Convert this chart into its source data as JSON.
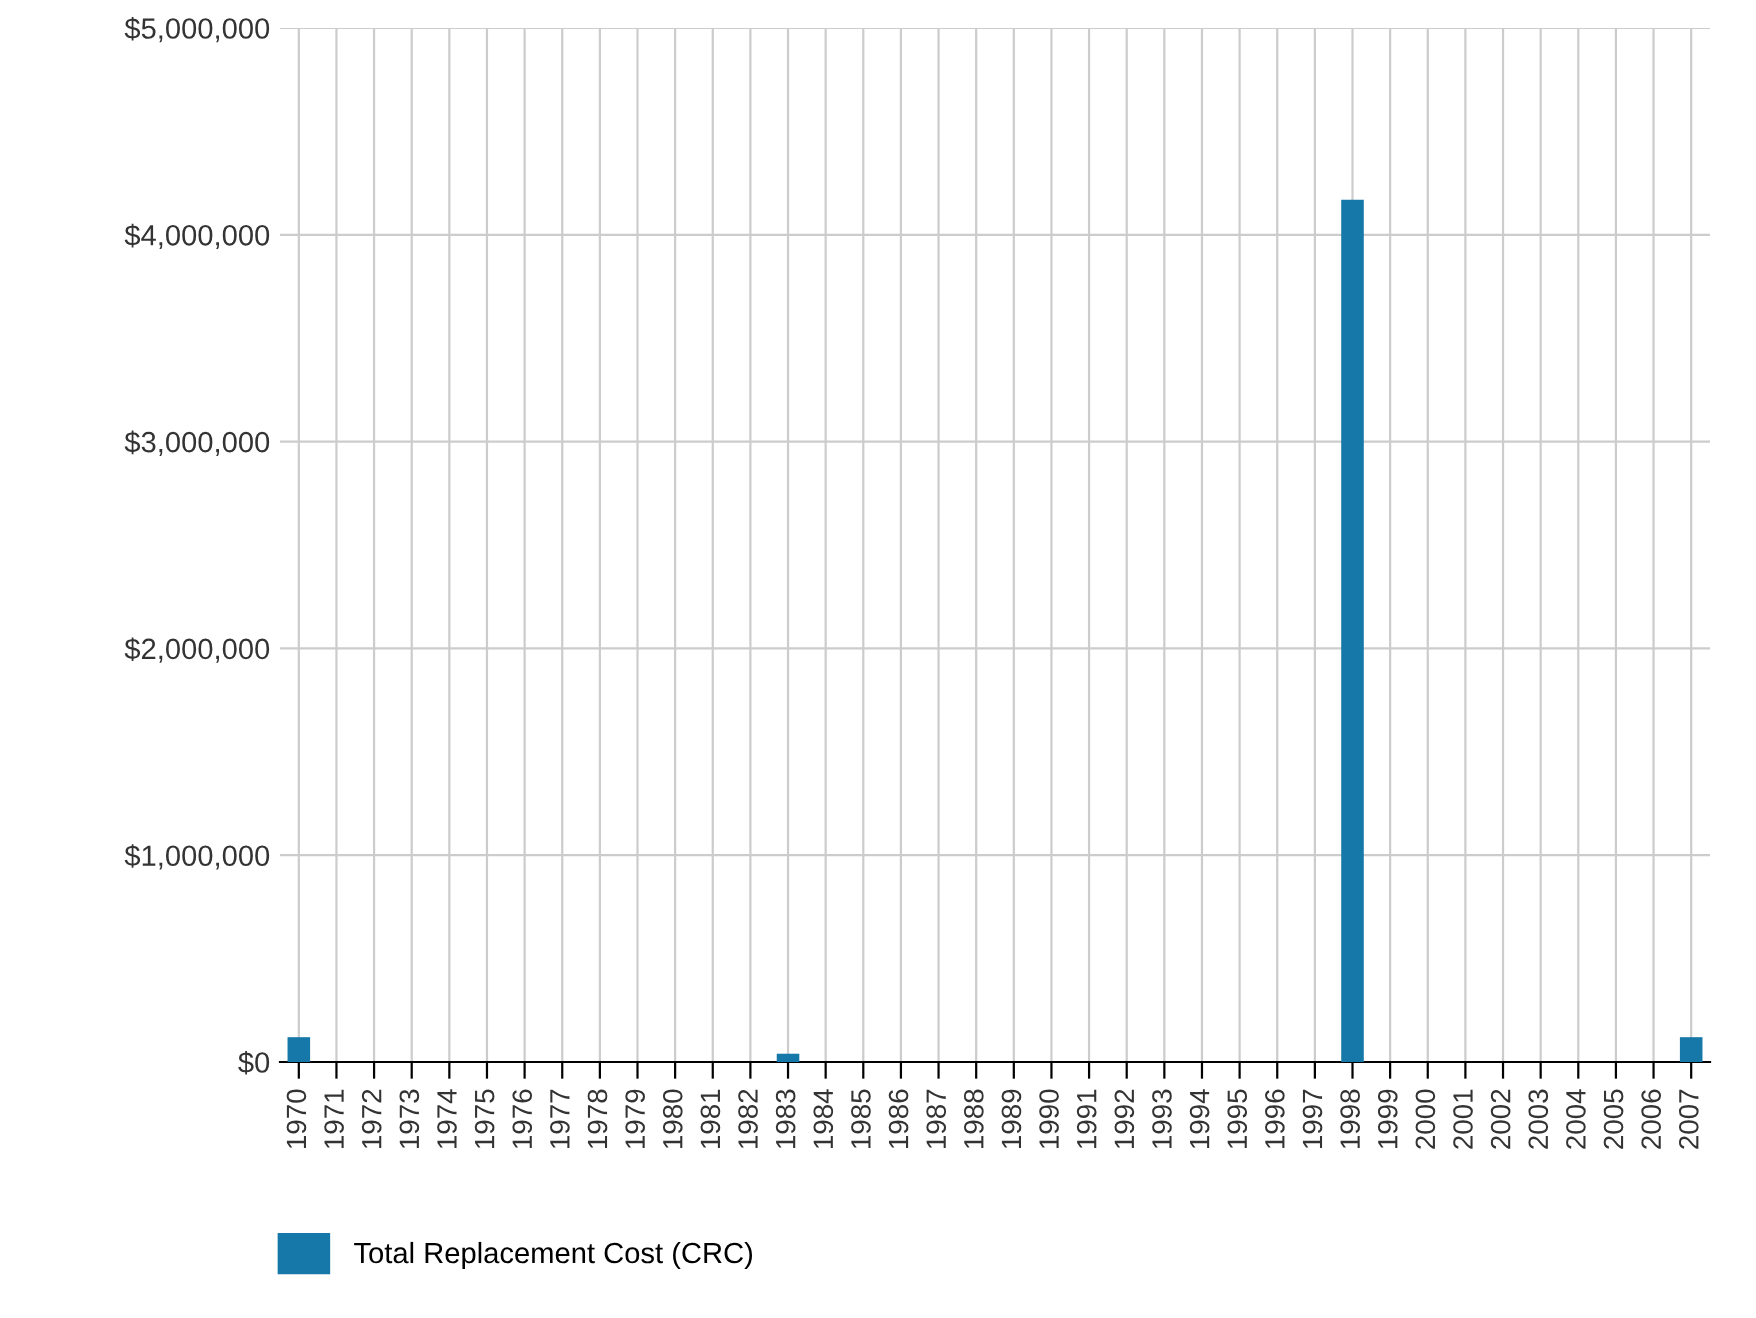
{
  "chart_data": {
    "type": "bar",
    "categories": [
      "1970",
      "1971",
      "1972",
      "1973",
      "1974",
      "1975",
      "1976",
      "1977",
      "1978",
      "1979",
      "1980",
      "1981",
      "1982",
      "1983",
      "1984",
      "1985",
      "1986",
      "1987",
      "1988",
      "1989",
      "1990",
      "1991",
      "1992",
      "1993",
      "1994",
      "1995",
      "1996",
      "1997",
      "1998",
      "1999",
      "2000",
      "2001",
      "2002",
      "2003",
      "2004",
      "2005",
      "2006",
      "2007"
    ],
    "series": [
      {
        "name": "Total Replacement Cost (CRC)",
        "color": "#1578a8",
        "values": [
          120000,
          0,
          0,
          0,
          0,
          0,
          0,
          0,
          0,
          0,
          0,
          0,
          0,
          40000,
          0,
          0,
          0,
          0,
          0,
          0,
          0,
          0,
          0,
          0,
          0,
          0,
          0,
          0,
          4170000,
          0,
          0,
          0,
          0,
          0,
          0,
          0,
          0,
          120000
        ]
      }
    ],
    "ylim": [
      0,
      5000000
    ],
    "yticks": [
      {
        "value": 0,
        "label": "$0"
      },
      {
        "value": 1000000,
        "label": "$1,000,000"
      },
      {
        "value": 2000000,
        "label": "$2,000,000"
      },
      {
        "value": 3000000,
        "label": "$3,000,000"
      },
      {
        "value": 4000000,
        "label": "$4,000,000"
      },
      {
        "value": 5000000,
        "label": "$5,000,000"
      }
    ],
    "grid": true,
    "legend": "bottom left"
  }
}
